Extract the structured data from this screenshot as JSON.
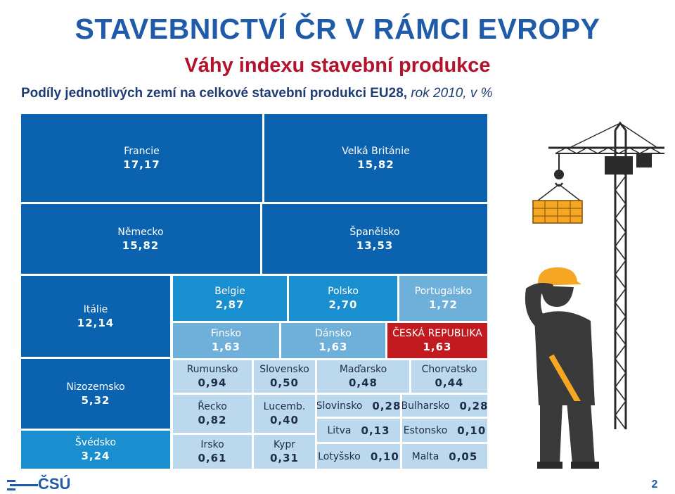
{
  "header": {
    "title": "STAVEBNICTVÍ ČR V RÁMCI EVROPY",
    "subtitle": "Váhy indexu stavební produkce",
    "caption_lead": "Podíly jednotlivých zemí na celkové stavební produkci EU28,",
    "caption_tail": " rok 2010, v %"
  },
  "footer": {
    "logo_text": "ČSÚ",
    "page_number": "2"
  },
  "colors": {
    "dark": "#0b63b0",
    "mid": "#1a8fd0",
    "light": "#6fb0da",
    "pale": "#bcd8ec",
    "highlight": "#c21a1f",
    "text_on_dark": "#ffffff",
    "text_on_pale": "#1e2d4a"
  },
  "chart_data": {
    "type": "treemap",
    "unit": "%",
    "items": [
      {
        "name": "Francie",
        "value": 17.17,
        "label": "17,17"
      },
      {
        "name": "Velká Británie",
        "value": 15.82,
        "label": "15,82"
      },
      {
        "name": "Německo",
        "value": 15.82,
        "label": "15,82"
      },
      {
        "name": "Španělsko",
        "value": 13.53,
        "label": "13,53"
      },
      {
        "name": "Itálie",
        "value": 12.14,
        "label": "12,14"
      },
      {
        "name": "Nizozemsko",
        "value": 5.32,
        "label": "5,32"
      },
      {
        "name": "Švédsko",
        "value": 3.24,
        "label": "3,24"
      },
      {
        "name": "Belgie",
        "value": 2.87,
        "label": "2,87"
      },
      {
        "name": "Polsko",
        "value": 2.7,
        "label": "2,70"
      },
      {
        "name": "Portugalsko",
        "value": 1.72,
        "label": "1,72"
      },
      {
        "name": "Finsko",
        "value": 1.63,
        "label": "1,63"
      },
      {
        "name": "Dánsko",
        "value": 1.63,
        "label": "1,63"
      },
      {
        "name": "ČESKÁ REPUBLIKA",
        "value": 1.63,
        "label": "1,63",
        "highlight": true
      },
      {
        "name": "Rumunsko",
        "value": 0.94,
        "label": "0,94"
      },
      {
        "name": "Slovensko",
        "value": 0.5,
        "label": "0,50"
      },
      {
        "name": "Maďarsko",
        "value": 0.48,
        "label": "0,48"
      },
      {
        "name": "Chorvatsko",
        "value": 0.44,
        "label": "0,44"
      },
      {
        "name": "Řecko",
        "value": 0.82,
        "label": "0,82"
      },
      {
        "name": "Lucemb.",
        "value": 0.4,
        "label": "0,40"
      },
      {
        "name": "Slovinsko",
        "value": 0.28,
        "label": "0,28"
      },
      {
        "name": "Bulharsko",
        "value": 0.28,
        "label": "0,28"
      },
      {
        "name": "Litva",
        "value": 0.13,
        "label": "0,13"
      },
      {
        "name": "Estonsko",
        "value": 0.1,
        "label": "0,10"
      },
      {
        "name": "Irsko",
        "value": 0.61,
        "label": "0,61"
      },
      {
        "name": "Kypr",
        "value": 0.31,
        "label": "0,31"
      },
      {
        "name": "Lotyšsko",
        "value": 0.1,
        "label": "0,10"
      },
      {
        "name": "Malta",
        "value": 0.05,
        "label": "0,05"
      }
    ]
  }
}
